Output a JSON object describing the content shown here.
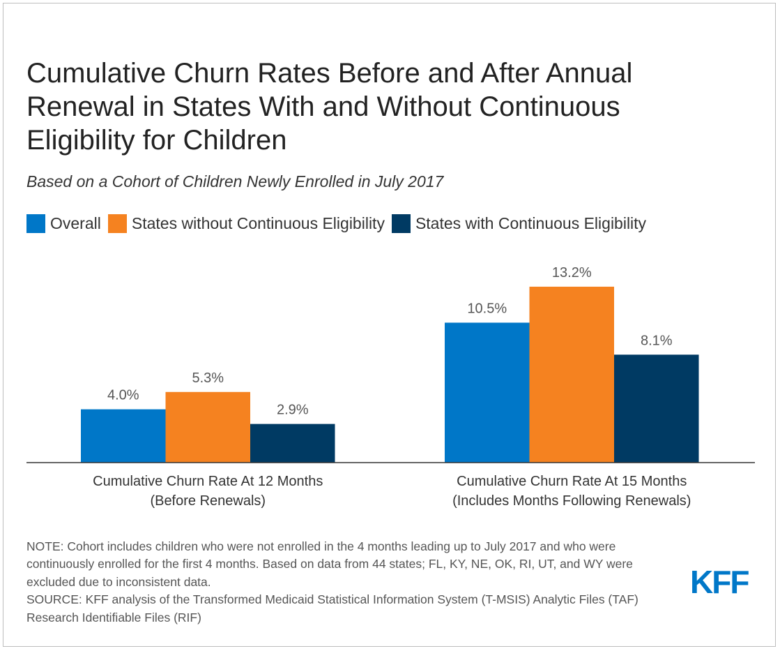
{
  "title": "Cumulative Churn Rates Before and After Annual Renewal in States With and Without Continuous Eligibility for Children",
  "subtitle": "Based on a Cohort of Children Newly Enrolled in July 2017",
  "note": "NOTE: Cohort includes children who were not enrolled in the 4 months leading up to July 2017 and who were continuously enrolled for the first 4 months. Based on data from 44 states; FL, KY, NE, OK, RI, UT, and WY were excluded due to inconsistent data.",
  "source": "SOURCE: KFF analysis of the Transformed Medicaid Statistical Information System (T-MSIS) Analytic Files (TAF) Research Identifiable Files (RIF)",
  "logo_text": "KFF",
  "colors": {
    "overall": "#0077c8",
    "without": "#f58220",
    "with": "#003a63",
    "text": "#222222",
    "label": "#555555"
  },
  "chart_data": {
    "type": "bar",
    "categories": [
      [
        "Cumulative Churn Rate At 12 Months",
        "(Before Renewals)"
      ],
      [
        "Cumulative Churn Rate At 15 Months",
        "(Includes Months Following Renewals)"
      ]
    ],
    "series": [
      {
        "name": "Overall",
        "color": "#0077c8",
        "values": [
          4.0,
          10.5
        ],
        "labels": [
          "4.0%",
          "10.5%"
        ]
      },
      {
        "name": "States without Continuous Eligibility",
        "color": "#f58220",
        "values": [
          5.3,
          13.2
        ],
        "labels": [
          "5.3%",
          "13.2%"
        ]
      },
      {
        "name": "States with Continuous Eligibility",
        "color": "#003a63",
        "values": [
          2.9,
          8.1
        ],
        "labels": [
          "2.9%",
          "8.1%"
        ]
      }
    ],
    "ylim": [
      0,
      14
    ],
    "legend": "top-left",
    "grid": false
  }
}
